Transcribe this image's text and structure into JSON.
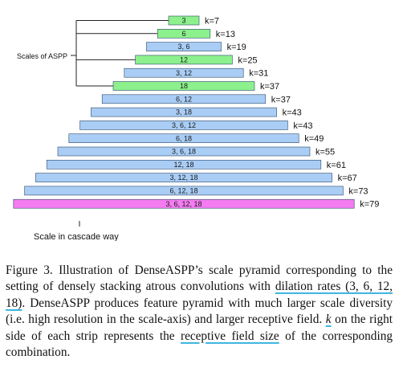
{
  "diagram": {
    "scales_label": "Scales of ASPP",
    "cascade_label": "Scale in cascade way",
    "colors": {
      "single_scale": "#8cf08c",
      "combined_scale": "#a9cdf5",
      "full_combination": "#f47cf0",
      "bar_border": "#2f4a6a",
      "bracket": "#222222"
    },
    "strips": [
      {
        "label": "3",
        "k": "k=7",
        "type": "single"
      },
      {
        "label": "6",
        "k": "k=13",
        "type": "single"
      },
      {
        "label": "3, 6",
        "k": "k=19",
        "type": "combined"
      },
      {
        "label": "12",
        "k": "k=25",
        "type": "single"
      },
      {
        "label": "3, 12",
        "k": "k=31",
        "type": "combined"
      },
      {
        "label": "18",
        "k": "k=37",
        "type": "single"
      },
      {
        "label": "6, 12",
        "k": "k=37",
        "type": "combined"
      },
      {
        "label": "3, 18",
        "k": "k=43",
        "type": "combined"
      },
      {
        "label": "3, 6, 12",
        "k": "k=43",
        "type": "combined"
      },
      {
        "label": "6, 18",
        "k": "k=49",
        "type": "combined"
      },
      {
        "label": "3, 6, 18",
        "k": "k=55",
        "type": "combined"
      },
      {
        "label": "12, 18",
        "k": "k=61",
        "type": "combined"
      },
      {
        "label": "3, 12, 18",
        "k": "k=67",
        "type": "combined"
      },
      {
        "label": "6, 12, 18",
        "k": "k=73",
        "type": "combined"
      },
      {
        "label": "3, 6, 12, 18",
        "k": "k=79",
        "type": "full"
      }
    ]
  },
  "caption": {
    "part1": "Figure 3. Illustration of DenseASPP’s scale pyramid correspond­ing to the setting of densely stacking atrous convolutions with ",
    "dilation_phrase": "di­lation rates (3, 6, 12, 18)",
    "part2": ". DenseASPP produces feature pyramid with much larger scale diversity (i.e. high resolution in the scale-axis) and larger receptive field. ",
    "k_symbol": "k",
    "part3": " on the right side of each strip represents the ",
    "receptive_phrase": "receptive field size",
    "part4": " of the corresponding combina­tion."
  }
}
